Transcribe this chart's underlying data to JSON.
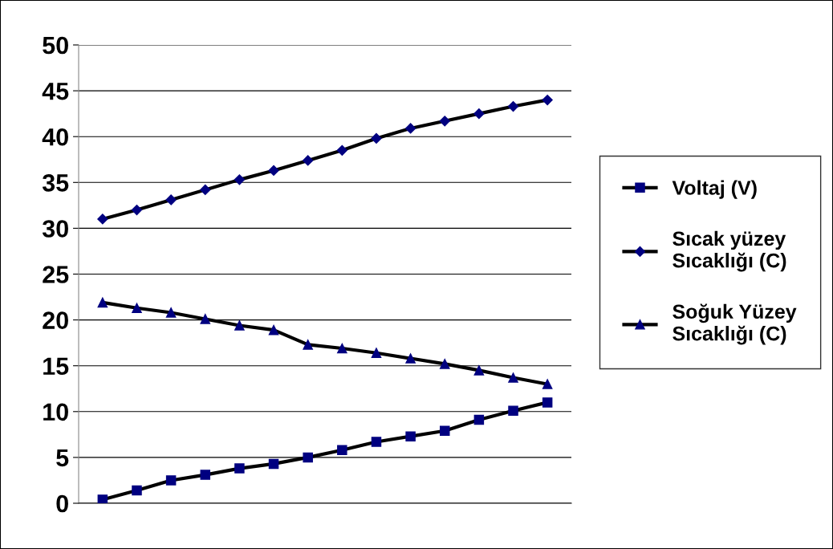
{
  "chart_data": {
    "type": "line",
    "categories": [
      null,
      null,
      null,
      null,
      null,
      null,
      null,
      null,
      null,
      null,
      null,
      null,
      null,
      null
    ],
    "series": [
      {
        "name": "Voltaj (V)",
        "color": "#000000",
        "marker": "square",
        "values": [
          0.4,
          1.4,
          2.5,
          3.1,
          3.8,
          4.3,
          5.0,
          5.8,
          6.7,
          7.3,
          7.9,
          9.1,
          10.1,
          11.0
        ]
      },
      {
        "name": "Sıcak yüzey Sıcaklığı (C)",
        "color": "#000000",
        "marker": "diamond",
        "values": [
          31.0,
          32.0,
          33.1,
          34.2,
          35.3,
          36.3,
          37.4,
          38.5,
          39.8,
          40.9,
          41.7,
          42.5,
          43.3,
          44.0
        ]
      },
      {
        "name": "Soğuk Yüzey Sıcaklığı (C)",
        "color": "#000000",
        "marker": "triangle",
        "values": [
          21.9,
          21.3,
          20.8,
          20.1,
          19.4,
          18.9,
          17.3,
          16.9,
          16.4,
          15.8,
          15.2,
          14.5,
          13.7,
          13.0
        ]
      }
    ],
    "ylim": [
      0,
      50
    ],
    "yticks": [
      0,
      5,
      10,
      15,
      20,
      25,
      30,
      35,
      40,
      45,
      50
    ],
    "grid": "y",
    "legend": "right"
  }
}
